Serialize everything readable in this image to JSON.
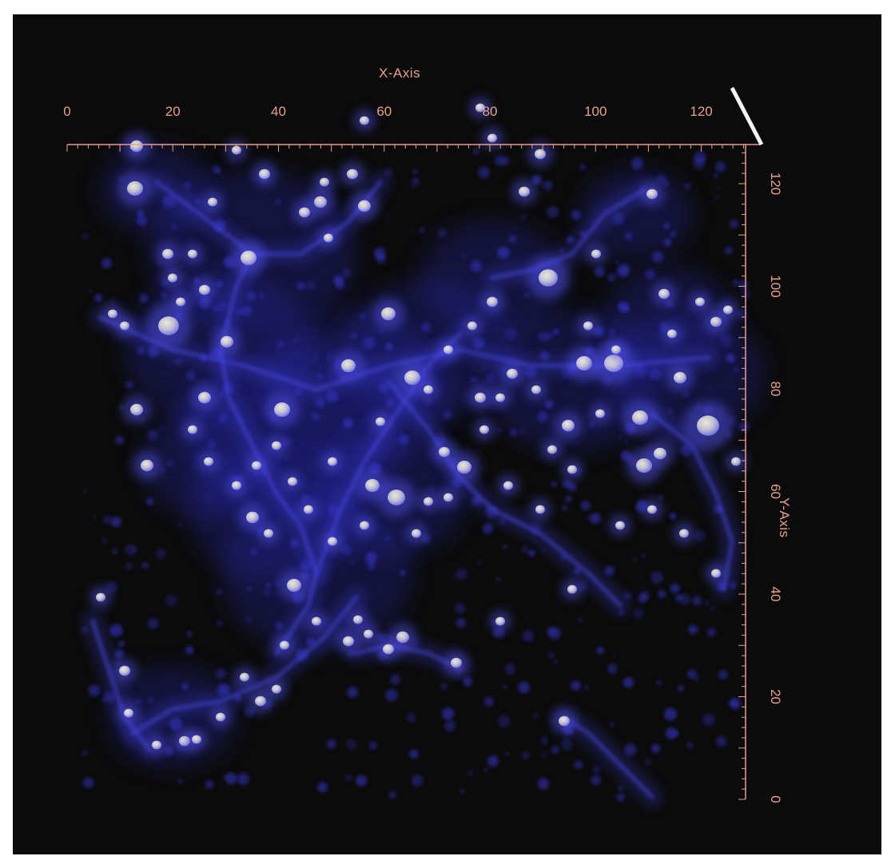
{
  "colors": {
    "frame_background": "#0b0b0b",
    "page_background": "#ffffff",
    "axis": "#e9a08f",
    "glow": "#3a3ad8",
    "blob_core": "#dcdccc"
  },
  "x_axis": {
    "title": "X-Axis",
    "range": [
      0,
      128
    ],
    "ticks": [
      "0",
      "20",
      "40",
      "60",
      "80",
      "100",
      "120"
    ]
  },
  "y_axis": {
    "title": "Y-Axis",
    "range": [
      0,
      128
    ],
    "ticks": [
      "0",
      "20",
      "40",
      "60",
      "80",
      "100",
      "120"
    ]
  }
}
